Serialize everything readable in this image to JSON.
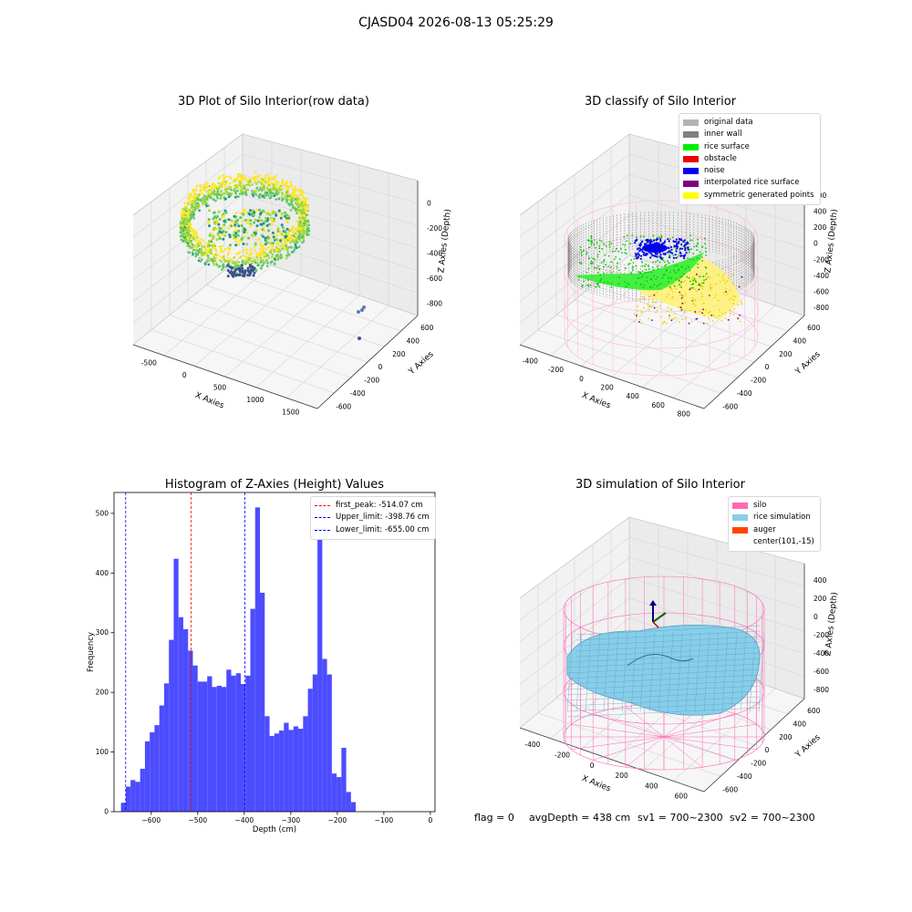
{
  "figure_title": "CJASD04 2026-08-13 05:25:29",
  "status": {
    "flag": "flag = 0",
    "avg_depth": "avgDepth = 438 cm",
    "sv1": "sv1 = 700~2300",
    "sv2": "sv2 = 700~2300"
  },
  "chart_data": [
    {
      "type": "scatter",
      "title": "3D Plot of Silo Interior(row data)",
      "xlabel": "X Axies",
      "ylabel": "Y Axies",
      "zlabel": "Z Axies (Depth)",
      "x_ticks": [
        "-500",
        "0",
        "500",
        "1000",
        "1500"
      ],
      "y_ticks": [
        "-600",
        "-400",
        "-200",
        "0",
        "200",
        "400",
        "600"
      ],
      "z_ticks": [
        "-800",
        "-600",
        "-400",
        "-200",
        "0"
      ],
      "colormap": "viridis",
      "outlier_points": [
        {
          "x": 1550,
          "y": 520,
          "z": -760
        },
        {
          "x": 1600,
          "y": 540,
          "z": -770
        },
        {
          "x": 1650,
          "y": 500,
          "z": -750
        },
        {
          "x": 1500,
          "y": 180,
          "z": -800
        }
      ]
    },
    {
      "type": "scatter",
      "title": "3D classify of Silo Interior",
      "xlabel": "X Axies",
      "ylabel": "Y Axies",
      "zlabel": "Z Axies (Depth)",
      "x_ticks": [
        "-400",
        "-200",
        "0",
        "200",
        "400",
        "600",
        "800"
      ],
      "y_ticks": [
        "-600",
        "-400",
        "-200",
        "0",
        "200",
        "400",
        "600"
      ],
      "z_ticks": [
        "-800",
        "-600",
        "-400",
        "-200",
        "0",
        "200",
        "400",
        "600"
      ],
      "legend": [
        {
          "label": "original data",
          "color": "#b3b3b3"
        },
        {
          "label": "inner wall",
          "color": "#808080"
        },
        {
          "label": "rice surface",
          "color": "#00ee00"
        },
        {
          "label": "obstacle",
          "color": "#ee0000"
        },
        {
          "label": "noise",
          "color": "#0000ee"
        },
        {
          "label": "interpolated rice surface",
          "color": "#800080"
        },
        {
          "label": "symmetric generated points",
          "color": "#ffff00"
        }
      ]
    },
    {
      "type": "bar",
      "title": "Histogram of Z-Axies (Height) Values",
      "xlabel": "Depth (cm)",
      "ylabel": "Frequency",
      "xlim": [
        -680,
        10
      ],
      "ylim": [
        0,
        535
      ],
      "x_ticks": [
        -600,
        -500,
        -400,
        -300,
        -200,
        -100,
        0
      ],
      "y_ticks": [
        0,
        100,
        200,
        300,
        400,
        500
      ],
      "bin_start": -665,
      "bin_width": 10.3,
      "values": [
        15,
        42,
        53,
        50,
        72,
        118,
        133,
        145,
        178,
        215,
        288,
        424,
        326,
        306,
        270,
        245,
        218,
        218,
        227,
        209,
        211,
        209,
        238,
        228,
        232,
        214,
        228,
        340,
        510,
        367,
        160,
        127,
        131,
        136,
        149,
        137,
        143,
        139,
        160,
        206,
        230,
        470,
        256,
        230,
        64,
        58,
        107,
        33,
        16
      ],
      "bar_color": "#4c4cff",
      "vlines": [
        {
          "label": "first_peak: -514.07 cm",
          "x": -514.07,
          "color": "#ff0000"
        },
        {
          "label": "Upper_limit: -398.76 cm",
          "x": -398.76,
          "color": "#0000ff"
        },
        {
          "label": "Lower_limit: -655.00 cm",
          "x": -655.0,
          "color": "#0000ff"
        }
      ]
    },
    {
      "type": "area",
      "title": "3D simulation of Silo Interior",
      "xlabel": "X Axies",
      "ylabel": "Y Axies",
      "zlabel": "Z Axies (Depth)",
      "x_ticks": [
        "-400",
        "-200",
        "0",
        "200",
        "400",
        "600"
      ],
      "y_ticks": [
        "-600",
        "-400",
        "-200",
        "0",
        "200",
        "400",
        "600"
      ],
      "z_ticks": [
        "-800",
        "-600",
        "-400",
        "-200",
        "0",
        "200",
        "400"
      ],
      "legend": [
        {
          "label": "silo",
          "color": "#ff69b4"
        },
        {
          "label": "rice simulation",
          "color": "#87ceeb"
        },
        {
          "label": "auger",
          "color": "#ff4500"
        },
        {
          "label": "center(101,-15)",
          "color": ""
        }
      ]
    }
  ]
}
